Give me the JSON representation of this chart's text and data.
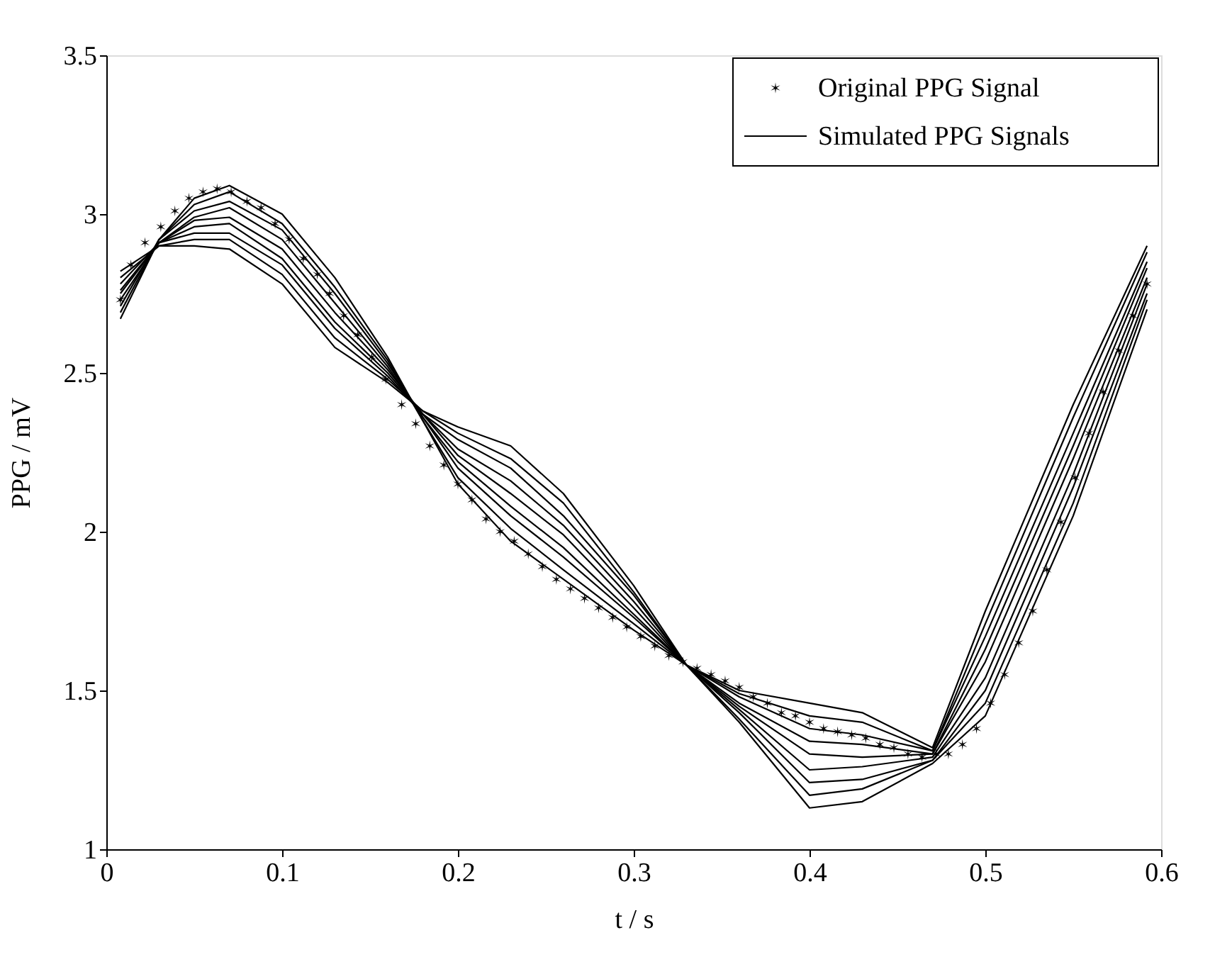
{
  "chart_data": {
    "type": "line",
    "xlabel": "t / s",
    "ylabel": "PPG / mV",
    "xlim": [
      0,
      0.6
    ],
    "xticks": [
      0,
      0.1,
      0.2,
      0.3,
      0.4,
      0.5,
      0.6
    ],
    "ylim": [
      1,
      3.5
    ],
    "yticks": [
      1,
      1.5,
      2,
      2.5,
      3,
      3.5
    ],
    "grid": false,
    "legend": "top right",
    "x": [
      0.008,
      0.03,
      0.05,
      0.07,
      0.1,
      0.13,
      0.16,
      0.18,
      0.2,
      0.23,
      0.26,
      0.3,
      0.33,
      0.36,
      0.4,
      0.43,
      0.47,
      0.5,
      0.55,
      0.592
    ],
    "series": [
      {
        "name": "Original PPG Signal",
        "type": "scatter",
        "marker": "cross",
        "color": "#000000",
        "x": [
          0.008,
          0.014,
          0.022,
          0.031,
          0.039,
          0.047,
          0.055,
          0.063,
          0.071,
          0.08,
          0.088,
          0.096,
          0.104,
          0.112,
          0.12,
          0.127,
          0.135,
          0.143,
          0.151,
          0.159,
          0.168,
          0.176,
          0.184,
          0.192,
          0.2,
          0.208,
          0.216,
          0.224,
          0.232,
          0.24,
          0.248,
          0.256,
          0.264,
          0.272,
          0.28,
          0.288,
          0.296,
          0.304,
          0.312,
          0.32,
          0.328,
          0.336,
          0.344,
          0.352,
          0.36,
          0.368,
          0.376,
          0.384,
          0.392,
          0.4,
          0.408,
          0.416,
          0.424,
          0.432,
          0.44,
          0.448,
          0.456,
          0.464,
          0.472,
          0.479,
          0.487,
          0.495,
          0.503,
          0.511,
          0.519,
          0.527,
          0.535,
          0.543,
          0.551,
          0.559,
          0.567,
          0.576,
          0.584,
          0.592
        ],
        "values": [
          2.73,
          2.84,
          2.91,
          2.96,
          3.01,
          3.05,
          3.07,
          3.08,
          3.07,
          3.04,
          3.02,
          2.97,
          2.92,
          2.86,
          2.81,
          2.75,
          2.68,
          2.62,
          2.55,
          2.48,
          2.4,
          2.34,
          2.27,
          2.21,
          2.15,
          2.1,
          2.04,
          2.0,
          1.97,
          1.93,
          1.89,
          1.85,
          1.82,
          1.79,
          1.76,
          1.73,
          1.7,
          1.67,
          1.64,
          1.61,
          1.59,
          1.57,
          1.55,
          1.53,
          1.51,
          1.48,
          1.46,
          1.43,
          1.42,
          1.4,
          1.38,
          1.37,
          1.36,
          1.35,
          1.33,
          1.32,
          1.3,
          1.29,
          1.3,
          1.3,
          1.33,
          1.38,
          1.46,
          1.55,
          1.65,
          1.75,
          1.88,
          2.03,
          2.17,
          2.31,
          2.44,
          2.57,
          2.68,
          2.78
        ]
      },
      {
        "name": "Simulated PPG Signals",
        "type": "line",
        "color": "#000000",
        "values": [
          2.67,
          2.92,
          3.05,
          3.09,
          3.0,
          2.8,
          2.55,
          2.35,
          2.15,
          1.97,
          1.85,
          1.69,
          1.58,
          1.4,
          1.13,
          1.15,
          1.27,
          1.42,
          2.05,
          2.7
        ]
      },
      {
        "type": "line",
        "color": "#000000",
        "values": [
          2.69,
          2.92,
          3.03,
          3.07,
          2.97,
          2.77,
          2.54,
          2.35,
          2.17,
          2.01,
          1.88,
          1.71,
          1.58,
          1.41,
          1.17,
          1.19,
          1.28,
          1.46,
          2.09,
          2.73
        ]
      },
      {
        "type": "line",
        "color": "#000000",
        "values": [
          2.71,
          2.92,
          3.01,
          3.04,
          2.95,
          2.75,
          2.53,
          2.36,
          2.2,
          2.05,
          1.92,
          1.73,
          1.58,
          1.43,
          1.21,
          1.22,
          1.28,
          1.5,
          2.14,
          2.75
        ]
      },
      {
        "type": "line",
        "color": "#000000",
        "values": [
          2.73,
          2.91,
          2.99,
          3.02,
          2.92,
          2.72,
          2.52,
          2.36,
          2.22,
          2.08,
          1.95,
          1.74,
          1.58,
          1.44,
          1.25,
          1.26,
          1.29,
          1.54,
          2.18,
          2.78
        ]
      },
      {
        "type": "line",
        "color": "#000000",
        "values": [
          2.75,
          2.91,
          2.98,
          2.99,
          2.89,
          2.69,
          2.51,
          2.37,
          2.24,
          2.12,
          1.99,
          1.76,
          1.58,
          1.45,
          1.3,
          1.29,
          1.3,
          1.59,
          2.23,
          2.8
        ]
      },
      {
        "type": "line",
        "color": "#000000",
        "values": [
          2.76,
          2.91,
          2.96,
          2.97,
          2.86,
          2.66,
          2.5,
          2.37,
          2.26,
          2.16,
          2.02,
          1.78,
          1.58,
          1.46,
          1.34,
          1.33,
          1.3,
          1.63,
          2.27,
          2.83
        ]
      },
      {
        "type": "line",
        "color": "#000000",
        "values": [
          2.78,
          2.91,
          2.94,
          2.94,
          2.84,
          2.64,
          2.49,
          2.37,
          2.29,
          2.2,
          2.05,
          1.8,
          1.58,
          1.48,
          1.38,
          1.36,
          1.31,
          1.67,
          2.31,
          2.85
        ]
      },
      {
        "type": "line",
        "color": "#000000",
        "values": [
          2.8,
          2.9,
          2.92,
          2.92,
          2.81,
          2.61,
          2.48,
          2.38,
          2.31,
          2.23,
          2.09,
          1.81,
          1.58,
          1.49,
          1.42,
          1.4,
          1.31,
          1.71,
          2.36,
          2.88
        ]
      },
      {
        "type": "line",
        "color": "#000000",
        "values": [
          2.82,
          2.9,
          2.9,
          2.89,
          2.78,
          2.58,
          2.47,
          2.38,
          2.33,
          2.27,
          2.12,
          1.83,
          1.58,
          1.5,
          1.46,
          1.43,
          1.32,
          1.75,
          2.4,
          2.9
        ]
      }
    ]
  }
}
